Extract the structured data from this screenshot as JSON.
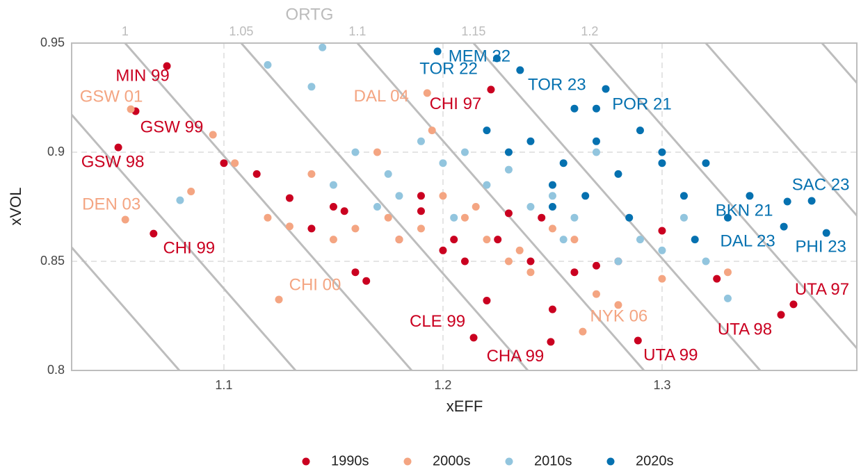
{
  "chart_data": {
    "type": "scatter",
    "x_label": "xEFF",
    "y_label": "xVOL",
    "x2_label": "ORTG",
    "xlim": [
      1.0305,
      1.3889
    ],
    "xticks": [
      1.1,
      1.2,
      1.3
    ],
    "ylim": [
      0.8,
      0.95
    ],
    "yticks": [
      0.8,
      0.85,
      0.9,
      0.95
    ],
    "x2lim": [
      0.977,
      1.315
    ],
    "x2ticks": [
      1.0,
      1.05,
      1.1,
      1.15,
      1.2
    ],
    "grid": true,
    "legend": "bottom",
    "series": [
      {
        "name": "1990s",
        "color": "#ca0020",
        "point_labels": [
          "MIN 99",
          "GSW 99",
          "GSW 98",
          "CHI 99",
          "CHI 97",
          "CLE 99",
          "CHA 99",
          "UTA 99",
          "UTA 98",
          "UTA 97",
          null,
          null,
          null,
          null,
          null,
          null,
          null,
          null,
          null,
          null,
          null,
          null,
          null,
          null,
          null,
          null,
          null,
          null,
          null,
          null,
          null,
          null,
          null,
          null,
          null
        ],
        "x": [
          1.074,
          1.0597,
          1.0518,
          1.0679,
          1.2219,
          1.214,
          1.2492,
          1.289,
          1.3543,
          1.36,
          1.1,
          1.115,
          1.13,
          1.14,
          1.15,
          1.16,
          1.165,
          1.18,
          1.19,
          1.2,
          1.205,
          1.21,
          1.22,
          1.225,
          1.23,
          1.24,
          1.245,
          1.25,
          1.26,
          1.27,
          1.28,
          1.3,
          1.325,
          1.19,
          1.155
        ],
        "values": [
          0.9395,
          0.9188,
          0.9022,
          0.8627,
          0.9287,
          0.815,
          0.8131,
          0.8137,
          0.8255,
          0.8303,
          0.895,
          0.89,
          0.879,
          0.865,
          0.875,
          0.845,
          0.841,
          0.86,
          0.873,
          0.855,
          0.86,
          0.85,
          0.832,
          0.86,
          0.872,
          0.85,
          0.87,
          0.828,
          0.845,
          0.848,
          0.85,
          0.864,
          0.842,
          0.88,
          0.873
        ]
      },
      {
        "name": "2000s",
        "color": "#f4a582",
        "point_labels": [
          "GSW 01",
          "DAL 04",
          "DEN 03",
          "CHI 00",
          "NYK 06",
          null,
          null,
          null,
          null,
          null,
          null,
          null,
          null,
          null,
          null,
          null,
          null,
          null,
          null,
          null,
          null,
          null,
          null,
          null,
          null,
          null,
          null,
          null,
          null,
          null,
          null
        ],
        "x": [
          1.0575,
          1.1928,
          1.055,
          1.1251,
          1.2638,
          1.095,
          1.105,
          1.12,
          1.13,
          1.14,
          1.15,
          1.16,
          1.17,
          1.175,
          1.18,
          1.19,
          1.195,
          1.2,
          1.21,
          1.215,
          1.22,
          1.23,
          1.235,
          1.24,
          1.25,
          1.26,
          1.27,
          1.28,
          1.3,
          1.33,
          1.085
        ],
        "values": [
          0.9197,
          0.9271,
          0.8691,
          0.8325,
          0.8178,
          0.908,
          0.895,
          0.87,
          0.866,
          0.89,
          0.86,
          0.865,
          0.9,
          0.87,
          0.86,
          0.865,
          0.91,
          0.88,
          0.87,
          0.875,
          0.86,
          0.85,
          0.855,
          0.845,
          0.865,
          0.86,
          0.835,
          0.83,
          0.842,
          0.845,
          0.882
        ]
      },
      {
        "name": "2010s",
        "color": "#92c5de",
        "x": [
          1.12,
          1.145,
          1.15,
          1.16,
          1.17,
          1.175,
          1.18,
          1.19,
          1.2,
          1.205,
          1.21,
          1.22,
          1.23,
          1.24,
          1.25,
          1.255,
          1.26,
          1.27,
          1.28,
          1.29,
          1.3,
          1.31,
          1.32,
          1.33,
          1.08,
          1.14
        ],
        "values": [
          0.94,
          0.948,
          0.885,
          0.9,
          0.875,
          0.89,
          0.88,
          0.905,
          0.895,
          0.87,
          0.9,
          0.885,
          0.892,
          0.875,
          0.88,
          0.86,
          0.87,
          0.9,
          0.85,
          0.86,
          0.855,
          0.87,
          0.85,
          0.833,
          0.878,
          0.93
        ]
      },
      {
        "name": "2020s",
        "color": "#0571b0",
        "point_labels": [
          "TOR 22",
          "MEM 22",
          "TOR 23",
          "POR 21",
          "SAC 23",
          "BKN 21",
          "DAL 23",
          "PHI 23",
          null,
          null,
          null,
          null,
          null,
          null,
          null,
          null,
          null,
          null,
          null,
          null,
          null,
          null,
          null,
          null,
          null,
          null,
          null,
          null
        ],
        "x": [
          1.1975,
          1.2246,
          1.2352,
          1.2743,
          1.3683,
          1.3572,
          1.3556,
          1.375,
          1.22,
          1.23,
          1.24,
          1.25,
          1.255,
          1.26,
          1.265,
          1.27,
          1.28,
          1.285,
          1.29,
          1.3,
          1.31,
          1.32,
          1.33,
          1.34,
          1.27,
          1.25,
          1.3,
          1.315
        ],
        "values": [
          0.9462,
          0.943,
          0.9376,
          0.929,
          0.8777,
          0.8774,
          0.8659,
          0.863,
          0.91,
          0.9,
          0.905,
          0.885,
          0.895,
          0.92,
          0.88,
          0.905,
          0.89,
          0.87,
          0.91,
          0.895,
          0.88,
          0.895,
          0.87,
          0.88,
          0.92,
          0.875,
          0.9,
          0.86
        ]
      }
    ]
  }
}
